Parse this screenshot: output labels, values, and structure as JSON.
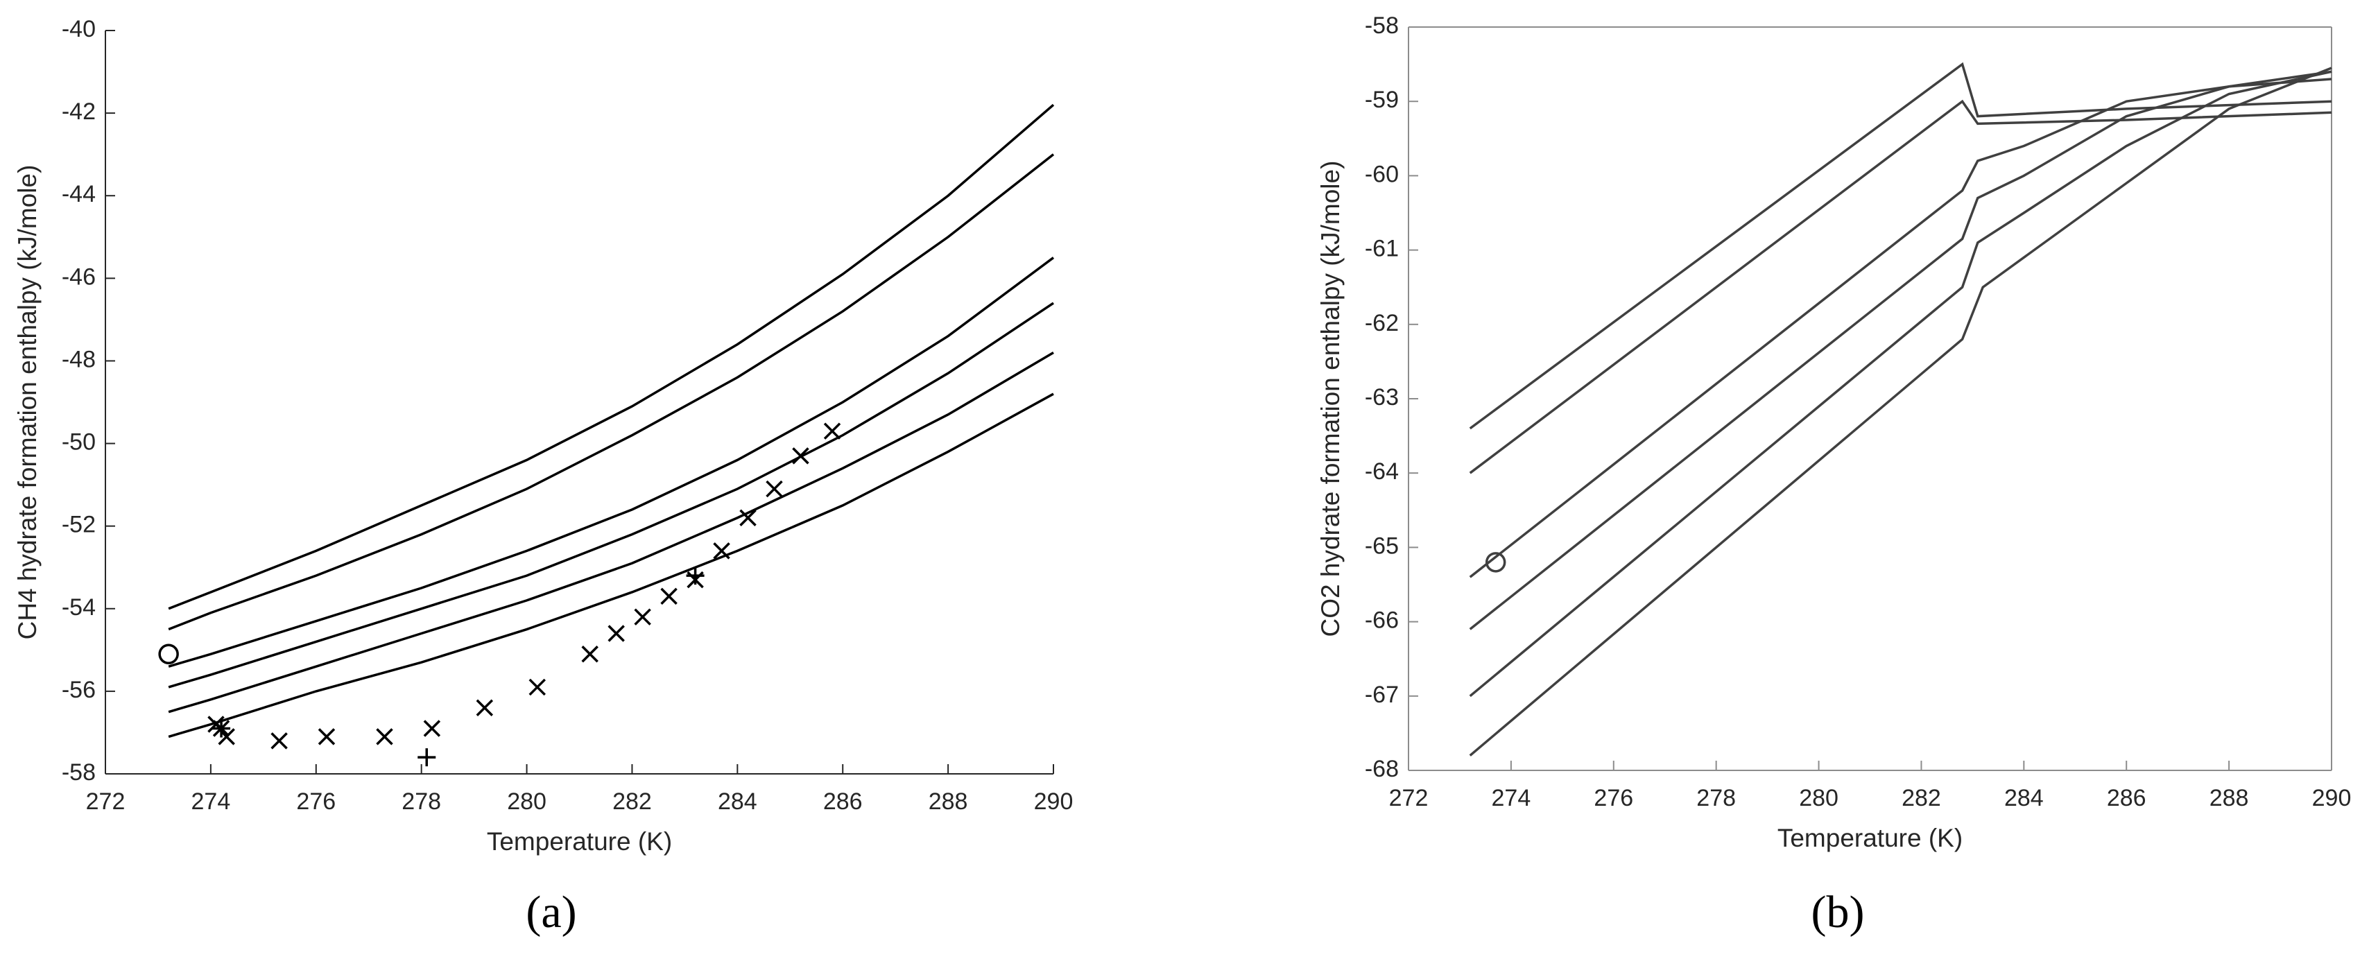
{
  "chart_data": [
    {
      "type": "line",
      "panel_label": "(a)",
      "x_label": "Temperature (K)",
      "y_label": "CH4 hydrate formation enthalpy (kJ/mole)",
      "xlim": [
        272,
        290
      ],
      "xticks": [
        272,
        274,
        276,
        278,
        280,
        282,
        284,
        286,
        288,
        290
      ],
      "ylim": [
        -58,
        -40
      ],
      "yticks": [
        -58,
        -56,
        -54,
        -52,
        -50,
        -48,
        -46,
        -44,
        -42,
        -40
      ],
      "frame": false,
      "grid": false,
      "series": [
        {
          "type": "line",
          "color": "#000000",
          "x": [
            273.2,
            274,
            276,
            278,
            280,
            282,
            284,
            286,
            288,
            290
          ],
          "values": [
            -54.0,
            -53.6,
            -52.6,
            -51.5,
            -50.4,
            -49.1,
            -47.6,
            -45.9,
            -44.0,
            -41.8
          ]
        },
        {
          "type": "line",
          "color": "#000000",
          "x": [
            273.2,
            274,
            276,
            278,
            280,
            282,
            284,
            286,
            288,
            290
          ],
          "values": [
            -54.5,
            -54.1,
            -53.2,
            -52.2,
            -51.1,
            -49.8,
            -48.4,
            -46.8,
            -45.0,
            -43.0
          ]
        },
        {
          "type": "line",
          "color": "#000000",
          "x": [
            273.2,
            274,
            276,
            278,
            280,
            282,
            284,
            286,
            288,
            290
          ],
          "values": [
            -55.4,
            -55.1,
            -54.3,
            -53.5,
            -52.6,
            -51.6,
            -50.4,
            -49.0,
            -47.4,
            -45.5
          ]
        },
        {
          "type": "line",
          "color": "#000000",
          "x": [
            273.2,
            274,
            276,
            278,
            280,
            282,
            284,
            286,
            288,
            290
          ],
          "values": [
            -55.9,
            -55.6,
            -54.8,
            -54.0,
            -53.2,
            -52.2,
            -51.1,
            -49.8,
            -48.3,
            -46.6
          ]
        },
        {
          "type": "line",
          "color": "#000000",
          "x": [
            273.2,
            274,
            276,
            278,
            280,
            282,
            284,
            286,
            288,
            290
          ],
          "values": [
            -56.5,
            -56.2,
            -55.4,
            -54.6,
            -53.8,
            -52.9,
            -51.8,
            -50.6,
            -49.3,
            -47.8
          ]
        },
        {
          "type": "line",
          "color": "#000000",
          "x": [
            273.2,
            274,
            276,
            278,
            280,
            282,
            284,
            286,
            288,
            290
          ],
          "values": [
            -57.1,
            -56.8,
            -56.0,
            -55.3,
            -54.5,
            -53.6,
            -52.6,
            -51.5,
            -50.2,
            -48.8
          ]
        },
        {
          "type": "scatter",
          "marker": "x",
          "color": "#000000",
          "x": [
            274.1,
            274.2,
            274.3,
            275.3,
            276.2,
            277.3,
            278.2,
            279.2,
            280.2,
            281.2,
            281.7,
            282.2,
            282.7,
            283.2,
            283.7,
            284.2,
            284.7,
            285.2,
            285.8
          ],
          "values": [
            -56.8,
            -56.9,
            -57.1,
            -57.2,
            -57.1,
            -57.1,
            -56.9,
            -56.4,
            -55.9,
            -55.1,
            -54.6,
            -54.2,
            -53.7,
            -53.3,
            -52.6,
            -51.8,
            -51.1,
            -50.3,
            -49.7
          ]
        },
        {
          "type": "scatter",
          "marker": "+",
          "color": "#000000",
          "x": [
            274.2,
            278.1,
            283.2
          ],
          "values": [
            -56.9,
            -57.6,
            -53.2
          ]
        },
        {
          "type": "scatter",
          "marker": "o",
          "color": "#000000",
          "x": [
            273.2
          ],
          "values": [
            -55.1
          ]
        }
      ]
    },
    {
      "type": "line",
      "panel_label": "(b)",
      "x_label": "Temperature (K)",
      "y_label": "CO2 hydrate formation enthalpy (kJ/mole)",
      "xlim": [
        272,
        290
      ],
      "xticks": [
        272,
        274,
        276,
        278,
        280,
        282,
        284,
        286,
        288,
        290
      ],
      "ylim": [
        -68,
        -58
      ],
      "yticks": [
        -68,
        -67,
        -66,
        -65,
        -64,
        -63,
        -62,
        -61,
        -60,
        -59,
        -58
      ],
      "frame": true,
      "grid": false,
      "series": [
        {
          "type": "line",
          "color": "#404040",
          "x": [
            273.2,
            282.8,
            283.1,
            286,
            290
          ],
          "values": [
            -63.4,
            -58.5,
            -59.2,
            -59.1,
            -59.0
          ]
        },
        {
          "type": "line",
          "color": "#404040",
          "x": [
            273.2,
            282.8,
            283.1,
            286,
            290
          ],
          "values": [
            -64.0,
            -59.0,
            -59.3,
            -59.25,
            -59.15
          ]
        },
        {
          "type": "line",
          "color": "#404040",
          "x": [
            273.2,
            282.8,
            283.1,
            284,
            286,
            288,
            290
          ],
          "values": [
            -65.4,
            -60.2,
            -59.8,
            -59.6,
            -59.0,
            -58.8,
            -58.7
          ]
        },
        {
          "type": "line",
          "color": "#404040",
          "x": [
            273.2,
            282.8,
            283.1,
            284,
            286,
            288,
            290
          ],
          "values": [
            -66.1,
            -60.85,
            -60.3,
            -60.0,
            -59.2,
            -58.8,
            -58.6
          ]
        },
        {
          "type": "line",
          "color": "#404040",
          "x": [
            273.2,
            282.8,
            283.1,
            284,
            286,
            288,
            290
          ],
          "values": [
            -67.0,
            -61.5,
            -60.9,
            -60.5,
            -59.6,
            -58.9,
            -58.6
          ]
        },
        {
          "type": "line",
          "color": "#404040",
          "x": [
            273.2,
            282.8,
            283.2,
            284,
            286,
            288,
            290
          ],
          "values": [
            -67.8,
            -62.2,
            -61.5,
            -61.1,
            -60.1,
            -59.1,
            -58.55
          ]
        },
        {
          "type": "scatter",
          "marker": "o",
          "color": "#404040",
          "x": [
            273.7
          ],
          "values": [
            -65.2
          ]
        }
      ]
    }
  ]
}
